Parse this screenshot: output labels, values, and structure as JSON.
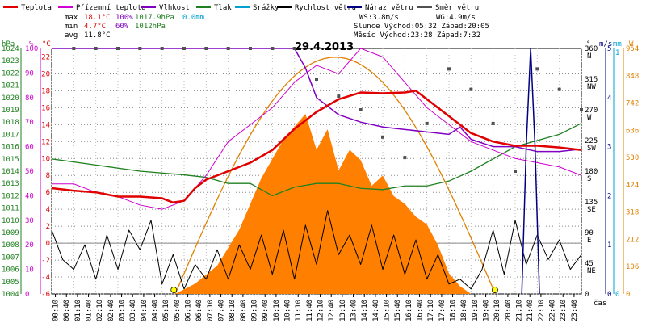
{
  "chart_data": {
    "type": "line",
    "title": "29.4.2013",
    "legend": [
      {
        "label": "Teplota",
        "color": "#e00000"
      },
      {
        "label": "Přízemní teplota",
        "color": "#d000d0"
      },
      {
        "label": "Vlhkost",
        "color": "#8000c0"
      },
      {
        "label": "Tlak",
        "color": "#208020"
      },
      {
        "label": "Srážky",
        "color": "#00a0d0"
      },
      {
        "label": "Rychlost větru",
        "color": "#000000"
      },
      {
        "label": "Náraz větru",
        "color": "#000080"
      },
      {
        "label": "Směr větru",
        "color": "#505050"
      }
    ],
    "stats": {
      "max_label": "max",
      "max_temp": "18.1°C",
      "max_hum": "100%",
      "max_pres": "1017.9hPa",
      "max_rain": "0.0mm",
      "min_label": "min",
      "min_temp": "4.7°C",
      "min_hum": "60%",
      "min_pres": "1012hPa",
      "avg_label": "avg",
      "avg_temp": "11.8°C",
      "ws": "WS:3.8m/s",
      "wg": "WG:4.9m/s",
      "sun": "Slunce Východ:05:32  Západ:20:05",
      "moon": "Měsíc  Východ:23:28  Západ:7:32"
    },
    "axes": {
      "hpa_title": "hPa",
      "pct_title": "%",
      "c_title": "°C",
      "deg_title": "°",
      "ms_title": "m/s",
      "mm_title": "mm",
      "w_title": "W",
      "hpa_ticks": [
        "1024",
        "1023",
        "1022",
        "1021",
        "1020",
        "1019",
        "1018",
        "1017",
        "1016",
        "1015",
        "1014",
        "1013",
        "1012",
        "1011",
        "1010",
        "1009",
        "1008",
        "1007",
        "1006",
        "1005",
        "1004"
      ],
      "pct_ticks": [
        "100",
        "90",
        "80",
        "70",
        "60",
        "50",
        "40",
        "30",
        "20",
        "10",
        "0"
      ],
      "c_ticks": [
        "22",
        "20",
        "18",
        "16",
        "14",
        "12",
        "10",
        "8",
        "6",
        "4",
        "2",
        "0",
        "-2",
        "-4",
        "-6"
      ],
      "dir_ticks": [
        [
          "360",
          "N"
        ],
        [
          "315",
          "NW"
        ],
        [
          "270",
          "W"
        ],
        [
          "225",
          "SW"
        ],
        [
          "180",
          "S"
        ],
        [
          "135",
          "SE"
        ],
        [
          "90",
          "E"
        ],
        [
          "45",
          "NE"
        ],
        [
          "0",
          ""
        ]
      ],
      "ms_ticks": [
        "5",
        "4",
        "3",
        "2",
        "1",
        "0"
      ],
      "mm_ticks": [
        "1",
        "0"
      ],
      "w_ticks": [
        "954",
        "848",
        "742",
        "636",
        "530",
        "424",
        "318",
        "212",
        "106",
        "0"
      ],
      "x_ticks": [
        "00:10",
        "00:40",
        "01:10",
        "01:40",
        "02:10",
        "02:40",
        "03:10",
        "03:40",
        "04:10",
        "04:40",
        "05:10",
        "05:40",
        "06:10",
        "06:40",
        "07:10",
        "07:40",
        "08:10",
        "08:40",
        "09:10",
        "09:40",
        "10:10",
        "10:40",
        "11:10",
        "11:40",
        "12:10",
        "12:40",
        "13:10",
        "13:40",
        "14:10",
        "14:40",
        "15:10",
        "15:40",
        "16:10",
        "16:40",
        "17:10",
        "17:40",
        "18:10",
        "18:40",
        "19:10",
        "19:40",
        "20:10",
        "20:40",
        "21:10",
        "21:40",
        "22:10",
        "22:40",
        "23:10",
        "23:40"
      ],
      "x_label": "čas"
    },
    "temperature_c": [
      [
        0,
        6.5
      ],
      [
        1,
        6.2
      ],
      [
        2,
        6
      ],
      [
        3,
        5.5
      ],
      [
        4,
        5.5
      ],
      [
        5,
        5.3
      ],
      [
        5.5,
        4.8
      ],
      [
        6,
        5
      ],
      [
        6.5,
        6.5
      ],
      [
        7,
        7.5
      ],
      [
        7.5,
        8
      ],
      [
        8,
        8.5
      ],
      [
        9,
        9.5
      ],
      [
        10,
        11
      ],
      [
        11,
        13.5
      ],
      [
        12,
        15.5
      ],
      [
        13,
        17
      ],
      [
        14,
        17.8
      ],
      [
        15,
        17.7
      ],
      [
        16,
        17.8
      ],
      [
        16.5,
        18
      ],
      [
        17,
        17
      ],
      [
        18,
        15
      ],
      [
        19,
        13
      ],
      [
        20,
        12
      ],
      [
        21,
        11.5
      ],
      [
        22,
        11.5
      ],
      [
        23,
        11.3
      ],
      [
        24,
        11
      ]
    ],
    "ground_temp_c": [
      [
        0,
        7
      ],
      [
        1,
        7
      ],
      [
        2,
        6
      ],
      [
        3,
        5.5
      ],
      [
        4,
        4.5
      ],
      [
        5,
        4
      ],
      [
        6,
        5
      ],
      [
        7,
        8
      ],
      [
        8,
        12
      ],
      [
        9,
        14
      ],
      [
        10,
        16
      ],
      [
        11,
        19
      ],
      [
        12,
        21
      ],
      [
        13,
        20
      ],
      [
        14,
        23
      ],
      [
        15,
        22
      ],
      [
        16,
        19
      ],
      [
        17,
        16
      ],
      [
        18,
        14
      ],
      [
        19,
        12
      ],
      [
        20,
        11
      ],
      [
        21,
        10
      ],
      [
        22,
        9.5
      ],
      [
        23,
        9
      ],
      [
        24,
        8
      ]
    ],
    "humidity_pct": [
      [
        0,
        100
      ],
      [
        11,
        100
      ],
      [
        11.5,
        92
      ],
      [
        12,
        80
      ],
      [
        13,
        73
      ],
      [
        14,
        70
      ],
      [
        15,
        68
      ],
      [
        16,
        67
      ],
      [
        17,
        66
      ],
      [
        18,
        65
      ],
      [
        18.5,
        68
      ],
      [
        19,
        63
      ],
      [
        20,
        60
      ],
      [
        21,
        60
      ],
      [
        22,
        58
      ],
      [
        23,
        58
      ],
      [
        24,
        59
      ]
    ],
    "pressure_hpa": [
      [
        0,
        1015
      ],
      [
        2,
        1014.5
      ],
      [
        4,
        1014
      ],
      [
        6,
        1013.7
      ],
      [
        7,
        1013.5
      ],
      [
        8,
        1013
      ],
      [
        9,
        1013
      ],
      [
        10,
        1012
      ],
      [
        11,
        1012.7
      ],
      [
        12,
        1013
      ],
      [
        13,
        1013
      ],
      [
        14,
        1012.6
      ],
      [
        15,
        1012.5
      ],
      [
        16,
        1012.8
      ],
      [
        17,
        1012.8
      ],
      [
        18,
        1013.2
      ],
      [
        19,
        1014
      ],
      [
        20,
        1015
      ],
      [
        21,
        1016
      ],
      [
        22,
        1016.5
      ],
      [
        23,
        1017
      ],
      [
        24,
        1017.9
      ]
    ],
    "wind_speed_ms": [
      [
        0,
        1.3
      ],
      [
        0.5,
        0.7
      ],
      [
        1,
        0.5
      ],
      [
        1.5,
        1
      ],
      [
        2,
        0.3
      ],
      [
        2.5,
        1.2
      ],
      [
        3,
        0.5
      ],
      [
        3.5,
        1.3
      ],
      [
        4,
        0.9
      ],
      [
        4.5,
        1.5
      ],
      [
        5,
        0.2
      ],
      [
        5.5,
        0.8
      ],
      [
        6,
        0.1
      ],
      [
        6.5,
        0.6
      ],
      [
        7,
        0.3
      ],
      [
        7.5,
        0.9
      ],
      [
        8,
        0.3
      ],
      [
        8.5,
        1
      ],
      [
        9,
        0.5
      ],
      [
        9.5,
        1.2
      ],
      [
        10,
        0.4
      ],
      [
        10.5,
        1.3
      ],
      [
        11,
        0.3
      ],
      [
        11.5,
        1.4
      ],
      [
        12,
        0.6
      ],
      [
        12.5,
        1.7
      ],
      [
        13,
        0.8
      ],
      [
        13.5,
        1.2
      ],
      [
        14,
        0.6
      ],
      [
        14.5,
        1.4
      ],
      [
        15,
        0.5
      ],
      [
        15.5,
        1.2
      ],
      [
        16,
        0.4
      ],
      [
        16.5,
        1.1
      ],
      [
        17,
        0.3
      ],
      [
        17.5,
        0.8
      ],
      [
        18,
        0.2
      ],
      [
        18.5,
        0.3
      ],
      [
        19,
        0.1
      ],
      [
        19.5,
        0.5
      ],
      [
        20,
        1.3
      ],
      [
        20.5,
        0.4
      ],
      [
        21,
        1.5
      ],
      [
        21.5,
        0.6
      ],
      [
        22,
        1.2
      ],
      [
        22.5,
        0.7
      ],
      [
        23,
        1.1
      ],
      [
        23.5,
        0.5
      ],
      [
        24,
        0.8
      ]
    ],
    "wind_gust_ms": [
      [
        21.3,
        0
      ],
      [
        21.5,
        3
      ],
      [
        21.7,
        5
      ],
      [
        21.9,
        3
      ],
      [
        22.1,
        0
      ]
    ],
    "wind_dir_deg": [
      [
        1,
        360
      ],
      [
        2,
        360
      ],
      [
        3,
        360
      ],
      [
        4,
        360
      ],
      [
        5,
        360
      ],
      [
        6,
        360
      ],
      [
        7,
        360
      ],
      [
        8,
        360
      ],
      [
        9,
        360
      ],
      [
        10,
        360
      ],
      [
        11,
        360
      ],
      [
        12,
        315
      ],
      [
        13,
        290
      ],
      [
        14,
        270
      ],
      [
        15,
        230
      ],
      [
        16,
        200
      ],
      [
        17,
        250
      ],
      [
        18,
        330
      ],
      [
        19,
        300
      ],
      [
        20,
        250
      ],
      [
        21,
        180
      ],
      [
        22,
        330
      ],
      [
        23,
        300
      ],
      [
        24,
        270
      ]
    ],
    "solar_w": [
      [
        5.6,
        0
      ],
      [
        6.5,
        40
      ],
      [
        7.5,
        110
      ],
      [
        8.5,
        250
      ],
      [
        9.5,
        450
      ],
      [
        10.5,
        600
      ],
      [
        11.5,
        700
      ],
      [
        12,
        560
      ],
      [
        12.5,
        640
      ],
      [
        13,
        480
      ],
      [
        13.5,
        560
      ],
      [
        14,
        520
      ],
      [
        14.5,
        420
      ],
      [
        15,
        460
      ],
      [
        15.5,
        380
      ],
      [
        16,
        350
      ],
      [
        16.5,
        300
      ],
      [
        17,
        270
      ],
      [
        17.5,
        190
      ],
      [
        18,
        80
      ],
      [
        18.5,
        30
      ],
      [
        19,
        0
      ]
    ],
    "theory_solar_w": [
      [
        5.6,
        0
      ],
      [
        12.8,
        920
      ],
      [
        20.1,
        0
      ]
    ],
    "sunrise": "05:32",
    "sunset": "20:05",
    "ranges": {
      "hpa": [
        1004,
        1024
      ],
      "pct": [
        0,
        100
      ],
      "c": [
        -6,
        23
      ],
      "deg": [
        0,
        360
      ],
      "ms": [
        0,
        5
      ],
      "w": [
        0,
        954
      ]
    }
  }
}
